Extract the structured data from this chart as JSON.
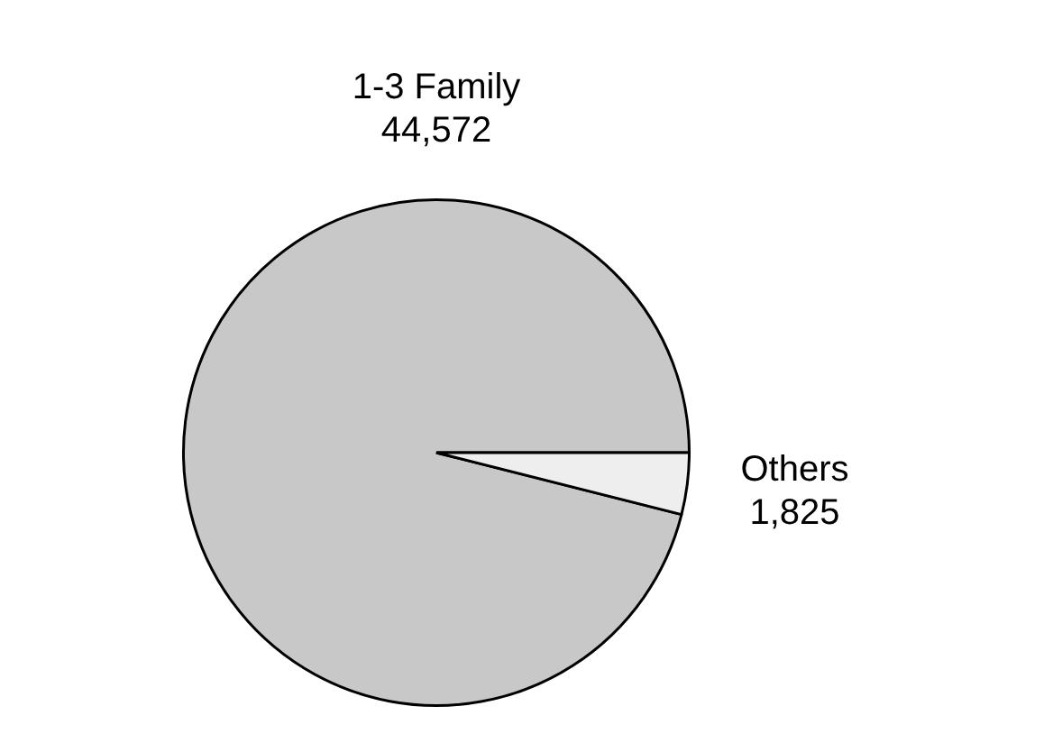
{
  "chart_data": {
    "type": "pie",
    "categories": [
      "1-3 Family",
      "Others"
    ],
    "values": [
      44572,
      1825
    ],
    "value_labels": [
      "44,572",
      "1,825"
    ],
    "colors": [
      "#c8c8c8",
      "#eeeeee"
    ],
    "legend": false
  }
}
